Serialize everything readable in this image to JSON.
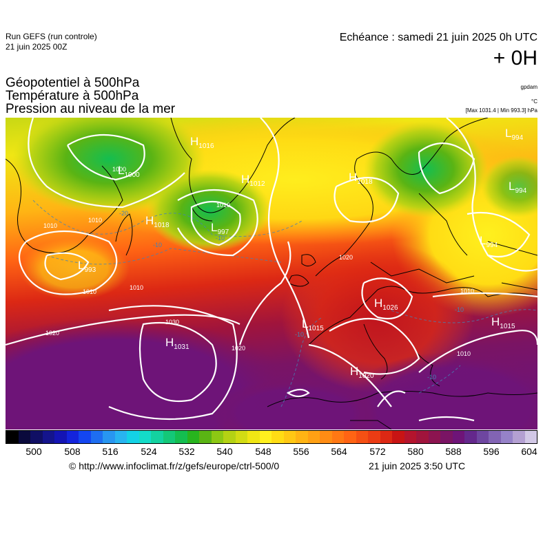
{
  "header": {
    "run_label": "Run GEFS (run controle)",
    "run_date": "21 juin 2025 00Z",
    "echeance": "Echéance : samedi 21 juin 2025 0h UTC",
    "lead_time": "+ 0H"
  },
  "fields": {
    "geopotential": "Géopotentiel à 500hPa",
    "temperature": "Température à 500hPa",
    "pressure": "Pression au niveau de la mer"
  },
  "units": {
    "geopotential": "gpdam",
    "temperature": "°C",
    "pressure": "[Max 1031.4 | Min 993.3] hPa"
  },
  "pressure_centers": [
    {
      "type": "H",
      "value": "1016"
    },
    {
      "type": "L",
      "value": "1000"
    },
    {
      "type": "H",
      "value": "1012"
    },
    {
      "type": "H",
      "value": "1018"
    },
    {
      "type": "L",
      "value": "994"
    },
    {
      "type": "L",
      "value": "994"
    },
    {
      "type": "H",
      "value": "1018"
    },
    {
      "type": "L",
      "value": "997"
    },
    {
      "type": "L",
      "value": "993"
    },
    {
      "type": "L",
      "value": "994"
    },
    {
      "type": "H",
      "value": "1026"
    },
    {
      "type": "L",
      "value": "1015"
    },
    {
      "type": "H",
      "value": "1015"
    },
    {
      "type": "H",
      "value": "1031"
    },
    {
      "type": "H",
      "value": "1020"
    }
  ],
  "isobar_labels": [
    "1020",
    "1030",
    "1010",
    "1010",
    "1010",
    "1020",
    "1010",
    "1010",
    "1000",
    "1010",
    "1020",
    "1010"
  ],
  "temperature_labels": [
    "-20",
    "-10",
    "-10",
    "-10",
    "-10",
    "-10"
  ],
  "colorbar": {
    "ticks": [
      "500",
      "508",
      "516",
      "524",
      "532",
      "540",
      "548",
      "556",
      "564",
      "572",
      "580",
      "588",
      "596",
      "604"
    ],
    "colors": [
      "#000000",
      "#0a0a3c",
      "#100f64",
      "#14148c",
      "#1414b4",
      "#1424dc",
      "#1446f0",
      "#1e6ef0",
      "#2896f0",
      "#28b4f0",
      "#14d2e6",
      "#14dcc8",
      "#14d2a0",
      "#14c878",
      "#14be50",
      "#28b41e",
      "#5ab414",
      "#8cc814",
      "#b4d214",
      "#d2dc14",
      "#f0e614",
      "#fff01e",
      "#ffdc14",
      "#ffc814",
      "#ffb414",
      "#ffa014",
      "#ff8c14",
      "#ff7814",
      "#ff6414",
      "#f55014",
      "#eb3c14",
      "#dc2814",
      "#c81414",
      "#b4142d",
      "#a0143c",
      "#8c1450",
      "#7a1464",
      "#6e1478",
      "#64288c",
      "#6e46a0",
      "#8264b4",
      "#9682c8",
      "#b4a0d2",
      "#d2c8e6"
    ],
    "range": [
      500,
      604
    ]
  },
  "footer": {
    "credit": "© http://www.infoclimat.fr/z/gefs/europe/ctrl-500/0",
    "timestamp": "21 juin 2025  3:50 UTC"
  }
}
